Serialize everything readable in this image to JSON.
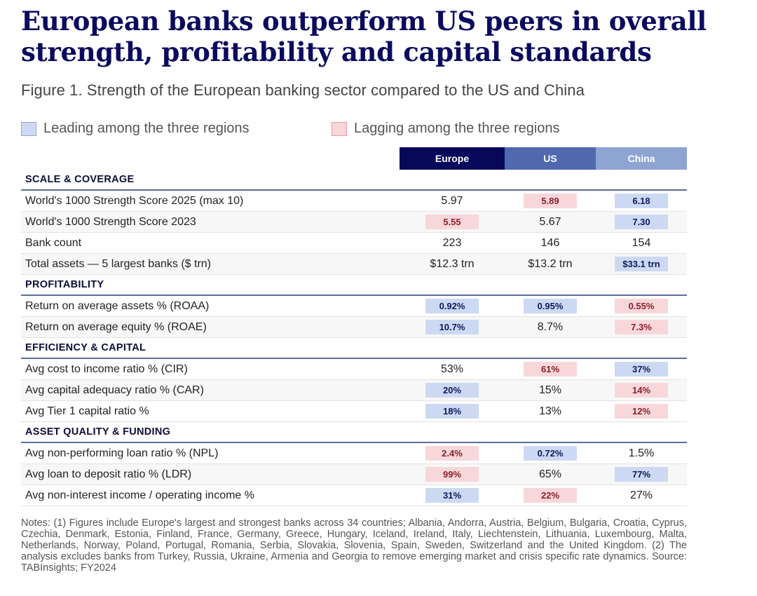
{
  "title": "European banks outperform US peers in overall strength, profitability and capital standards",
  "subtitle": "Figure 1. Strength of the European banking sector compared to the US and China",
  "legend": {
    "leading": "Leading among the three regions",
    "lagging": "Lagging among the three regions"
  },
  "columns": {
    "eu": "Europe",
    "us": "US",
    "cn": "China"
  },
  "colors": {
    "title": "#0a0a5e",
    "europe_header": "#08085a",
    "us_header": "#4f68ae",
    "china_header": "#8ea4d2",
    "leading_fill": "#cdd9f3",
    "lagging_fill": "#f8d7da"
  },
  "sections": [
    {
      "name": "SCALE & COVERAGE",
      "rows": [
        {
          "label": "World's 1000 Strength Score 2025 (max 10)",
          "eu": "5.97",
          "eu_s": "",
          "us": "5.89",
          "us_s": "lag",
          "cn": "6.18",
          "cn_s": "lead"
        },
        {
          "label": "World's 1000 Strength Score 2023",
          "eu": "5.55",
          "eu_s": "lag",
          "us": "5.67",
          "us_s": "",
          "cn": "7.30",
          "cn_s": "lead"
        },
        {
          "label": "Bank count",
          "eu": "223",
          "eu_s": "",
          "us": "146",
          "us_s": "",
          "cn": "154",
          "cn_s": ""
        },
        {
          "label": "Total assets — 5 largest banks ($ trn)",
          "eu": "$12.3 trn",
          "eu_s": "",
          "us": "$13.2 trn",
          "us_s": "",
          "cn": "$33.1 trn",
          "cn_s": "lead"
        }
      ]
    },
    {
      "name": "PROFITABILITY",
      "rows": [
        {
          "label": "Return on average assets % (ROAA)",
          "eu": "0.92%",
          "eu_s": "lead",
          "us": "0.95%",
          "us_s": "lead",
          "cn": "0.55%",
          "cn_s": "lag"
        },
        {
          "label": "Return on average equity % (ROAE)",
          "eu": "10.7%",
          "eu_s": "lead",
          "us": "8.7%",
          "us_s": "",
          "cn": "7.3%",
          "cn_s": "lag"
        }
      ]
    },
    {
      "name": "EFFICIENCY & CAPITAL",
      "rows": [
        {
          "label": "Avg cost to income ratio % (CIR)",
          "eu": "53%",
          "eu_s": "",
          "us": "61%",
          "us_s": "lag",
          "cn": "37%",
          "cn_s": "lead"
        },
        {
          "label": "Avg capital adequacy ratio % (CAR)",
          "eu": "20%",
          "eu_s": "lead",
          "us": "15%",
          "us_s": "",
          "cn": "14%",
          "cn_s": "lag"
        },
        {
          "label": "Avg Tier 1 capital ratio %",
          "eu": "18%",
          "eu_s": "lead",
          "us": "13%",
          "us_s": "",
          "cn": "12%",
          "cn_s": "lag"
        }
      ]
    },
    {
      "name": "ASSET QUALITY & FUNDING",
      "rows": [
        {
          "label": "Avg non-performing loan ratio % (NPL)",
          "eu": "2.4%",
          "eu_s": "lag",
          "us": "0.72%",
          "us_s": "lead",
          "cn": "1.5%",
          "cn_s": ""
        },
        {
          "label": "Avg loan to deposit ratio % (LDR)",
          "eu": "99%",
          "eu_s": "lag",
          "us": "65%",
          "us_s": "",
          "cn": "77%",
          "cn_s": "lead"
        },
        {
          "label": "Avg non-interest income / operating income %",
          "eu": "31%",
          "eu_s": "lead",
          "us": "22%",
          "us_s": "lag",
          "cn": "27%",
          "cn_s": ""
        }
      ]
    }
  ],
  "notes": "Notes: (1) Figures include Europe's largest and strongest banks across 34 countries; Albania, Andorra, Austria, Belgium, Bulgaria, Croatia, Cyprus, Czechia, Denmark, Estonia, Finland, France, Germany, Greece, Hungary, Iceland, Ireland, Italy, Liechtenstein, Lithuania, Luxembourg, Malta, Netherlands, Norway, Poland, Portugal, Romania, Serbia, Slovakia, Slovenia, Spain, Sweden, Switzerland and the United Kingdom. (2) The analysis excludes banks from Turkey, Russia, Ukraine, Armenia and Georgia to remove emerging market and crisis specific rate dynamics. Source: TABInsights; FY2024"
}
